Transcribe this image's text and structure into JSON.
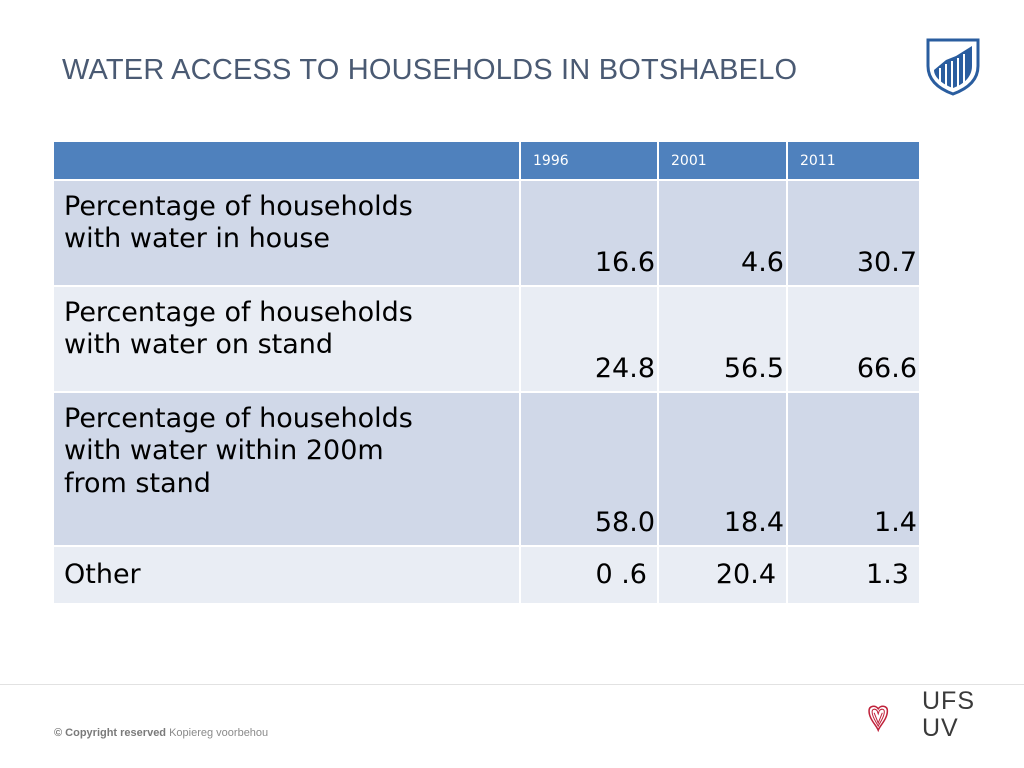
{
  "slide": {
    "title": "WATER ACCESS TO HOUSEHOLDS IN BOTSHABELO"
  },
  "table": {
    "headers": [
      "",
      "1996",
      "2001",
      "2011"
    ],
    "rows": [
      {
        "label_lines": [
          "Percentage of households",
          "with water in house"
        ],
        "values": [
          "16.6",
          "4.6",
          "30.7"
        ]
      },
      {
        "label_lines": [
          "Percentage of households",
          "with water on stand"
        ],
        "values": [
          "24.8",
          "56.5",
          "66.6"
        ]
      },
      {
        "label_lines": [
          "Percentage of households",
          "with water within 200m",
          "from stand"
        ],
        "values": [
          "58.0",
          "18.4",
          "1.4"
        ]
      },
      {
        "label_lines": [
          "Other"
        ],
        "values": [
          "0 .6",
          "20.4",
          "1.3"
        ]
      }
    ]
  },
  "footer": {
    "copyright_bold": "© Copyright reserved",
    "copyright_rest": " Kopiereg voorbehou",
    "logo_line1": "UFS",
    "logo_line2": "UV"
  },
  "colors": {
    "header_bg": "#4f81bd",
    "row_odd_bg": "#d0d8e8",
    "row_even_bg": "#e9edf4",
    "title_color": "#4a5a73",
    "logo_red": "#c0223b",
    "crest_blue": "#2a5d9f"
  },
  "icons": {
    "crest": "university-crest-icon",
    "ufs": "ufs-heart-logo-icon"
  }
}
